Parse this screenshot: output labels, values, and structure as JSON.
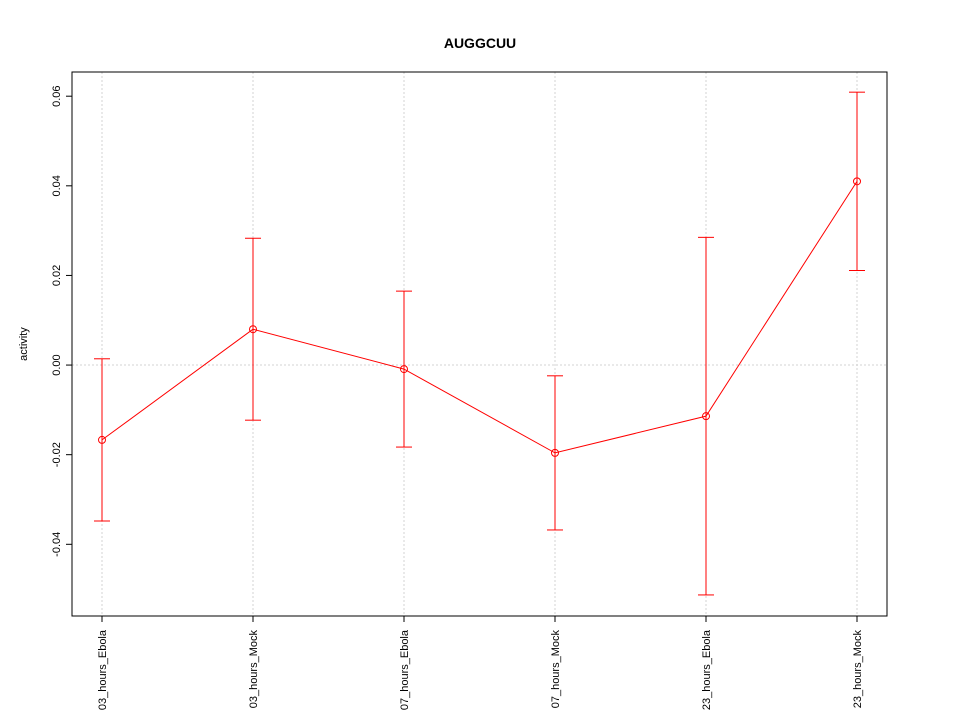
{
  "chart_data": {
    "type": "errorbar-line",
    "title": "AUGGCUU",
    "y_label": "activity",
    "categories": [
      "03_hours_Ebola",
      "03_hours_Mock",
      "07_hours_Ebola",
      "07_hours_Mock",
      "23_hours_Ebola",
      "23_hours_Mock"
    ],
    "series": [
      {
        "name": "activity",
        "color": "#ff0000",
        "values": [
          -0.0167,
          0.008,
          -0.0009,
          -0.0196,
          -0.0114,
          0.041
        ],
        "errors": [
          0.0181,
          0.0203,
          0.0174,
          0.0172,
          0.0399,
          0.0199
        ]
      }
    ],
    "ylim": [
      -0.056,
      0.0654
    ],
    "yticks": [
      {
        "value": -0.04,
        "label": "-0.04"
      },
      {
        "value": -0.02,
        "label": "-0.02"
      },
      {
        "value": 0,
        "label": "0.00"
      },
      {
        "value": 0.02,
        "label": "0.02"
      },
      {
        "value": 0.04,
        "label": "0.04"
      },
      {
        "value": 0.06,
        "label": "0.06"
      }
    ],
    "grid": true,
    "hline": 0
  }
}
